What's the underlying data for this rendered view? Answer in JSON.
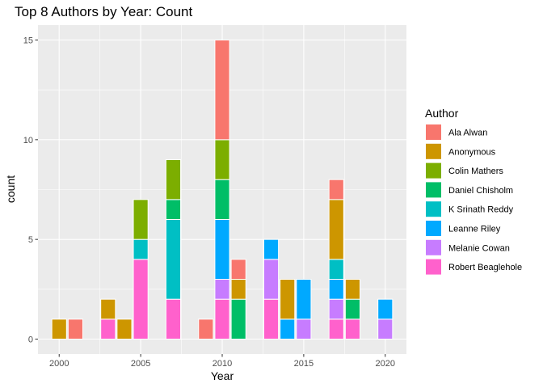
{
  "chart_data": {
    "type": "bar",
    "stacked": true,
    "title": "Top 8 Authors by Year: Count",
    "xlabel": "Year",
    "ylabel": "count",
    "xlim": [
      1998.7,
      2021.3
    ],
    "ylim": [
      -0.75,
      15.75
    ],
    "x_ticks": [
      2000,
      2005,
      2010,
      2015,
      2020
    ],
    "y_ticks": [
      0,
      5,
      10,
      15
    ],
    "grid": true,
    "legend": {
      "title": "Author",
      "position": "right"
    },
    "series": [
      {
        "name": "Ala Alwan",
        "color": "#F8766D",
        "points": [
          {
            "x": 2001,
            "y": 1
          },
          {
            "x": 2009,
            "y": 1
          },
          {
            "x": 2010,
            "y": 5
          },
          {
            "x": 2011,
            "y": 1
          },
          {
            "x": 2017,
            "y": 1
          }
        ]
      },
      {
        "name": "Anonymous",
        "color": "#CD9600",
        "points": [
          {
            "x": 2000,
            "y": 1
          },
          {
            "x": 2003,
            "y": 1
          },
          {
            "x": 2004,
            "y": 1
          },
          {
            "x": 2011,
            "y": 1
          },
          {
            "x": 2014,
            "y": 2
          },
          {
            "x": 2017,
            "y": 3
          },
          {
            "x": 2018,
            "y": 1
          }
        ]
      },
      {
        "name": "Colin Mathers",
        "color": "#7CAE00",
        "points": [
          {
            "x": 2005,
            "y": 2
          },
          {
            "x": 2007,
            "y": 2
          },
          {
            "x": 2010,
            "y": 2
          }
        ]
      },
      {
        "name": "Daniel Chisholm",
        "color": "#00BE67",
        "points": [
          {
            "x": 2007,
            "y": 1
          },
          {
            "x": 2010,
            "y": 2
          },
          {
            "x": 2011,
            "y": 2
          },
          {
            "x": 2018,
            "y": 1
          }
        ]
      },
      {
        "name": "K Srinath Reddy",
        "color": "#00BFC4",
        "points": [
          {
            "x": 2005,
            "y": 1
          },
          {
            "x": 2007,
            "y": 4
          },
          {
            "x": 2017,
            "y": 1
          }
        ]
      },
      {
        "name": "Leanne Riley",
        "color": "#00A9FF",
        "points": [
          {
            "x": 2010,
            "y": 3
          },
          {
            "x": 2013,
            "y": 1
          },
          {
            "x": 2014,
            "y": 1
          },
          {
            "x": 2015,
            "y": 2
          },
          {
            "x": 2017,
            "y": 1
          },
          {
            "x": 2020,
            "y": 1
          }
        ]
      },
      {
        "name": "Melanie Cowan",
        "color": "#C77CFF",
        "points": [
          {
            "x": 2010,
            "y": 1
          },
          {
            "x": 2013,
            "y": 2
          },
          {
            "x": 2015,
            "y": 1
          },
          {
            "x": 2017,
            "y": 1
          },
          {
            "x": 2020,
            "y": 1
          }
        ]
      },
      {
        "name": "Robert Beaglehole",
        "color": "#FF61CC",
        "points": [
          {
            "x": 2003,
            "y": 1
          },
          {
            "x": 2005,
            "y": 4
          },
          {
            "x": 2007,
            "y": 2
          },
          {
            "x": 2010,
            "y": 2
          },
          {
            "x": 2013,
            "y": 2
          },
          {
            "x": 2017,
            "y": 1
          },
          {
            "x": 2018,
            "y": 1
          }
        ]
      }
    ]
  }
}
